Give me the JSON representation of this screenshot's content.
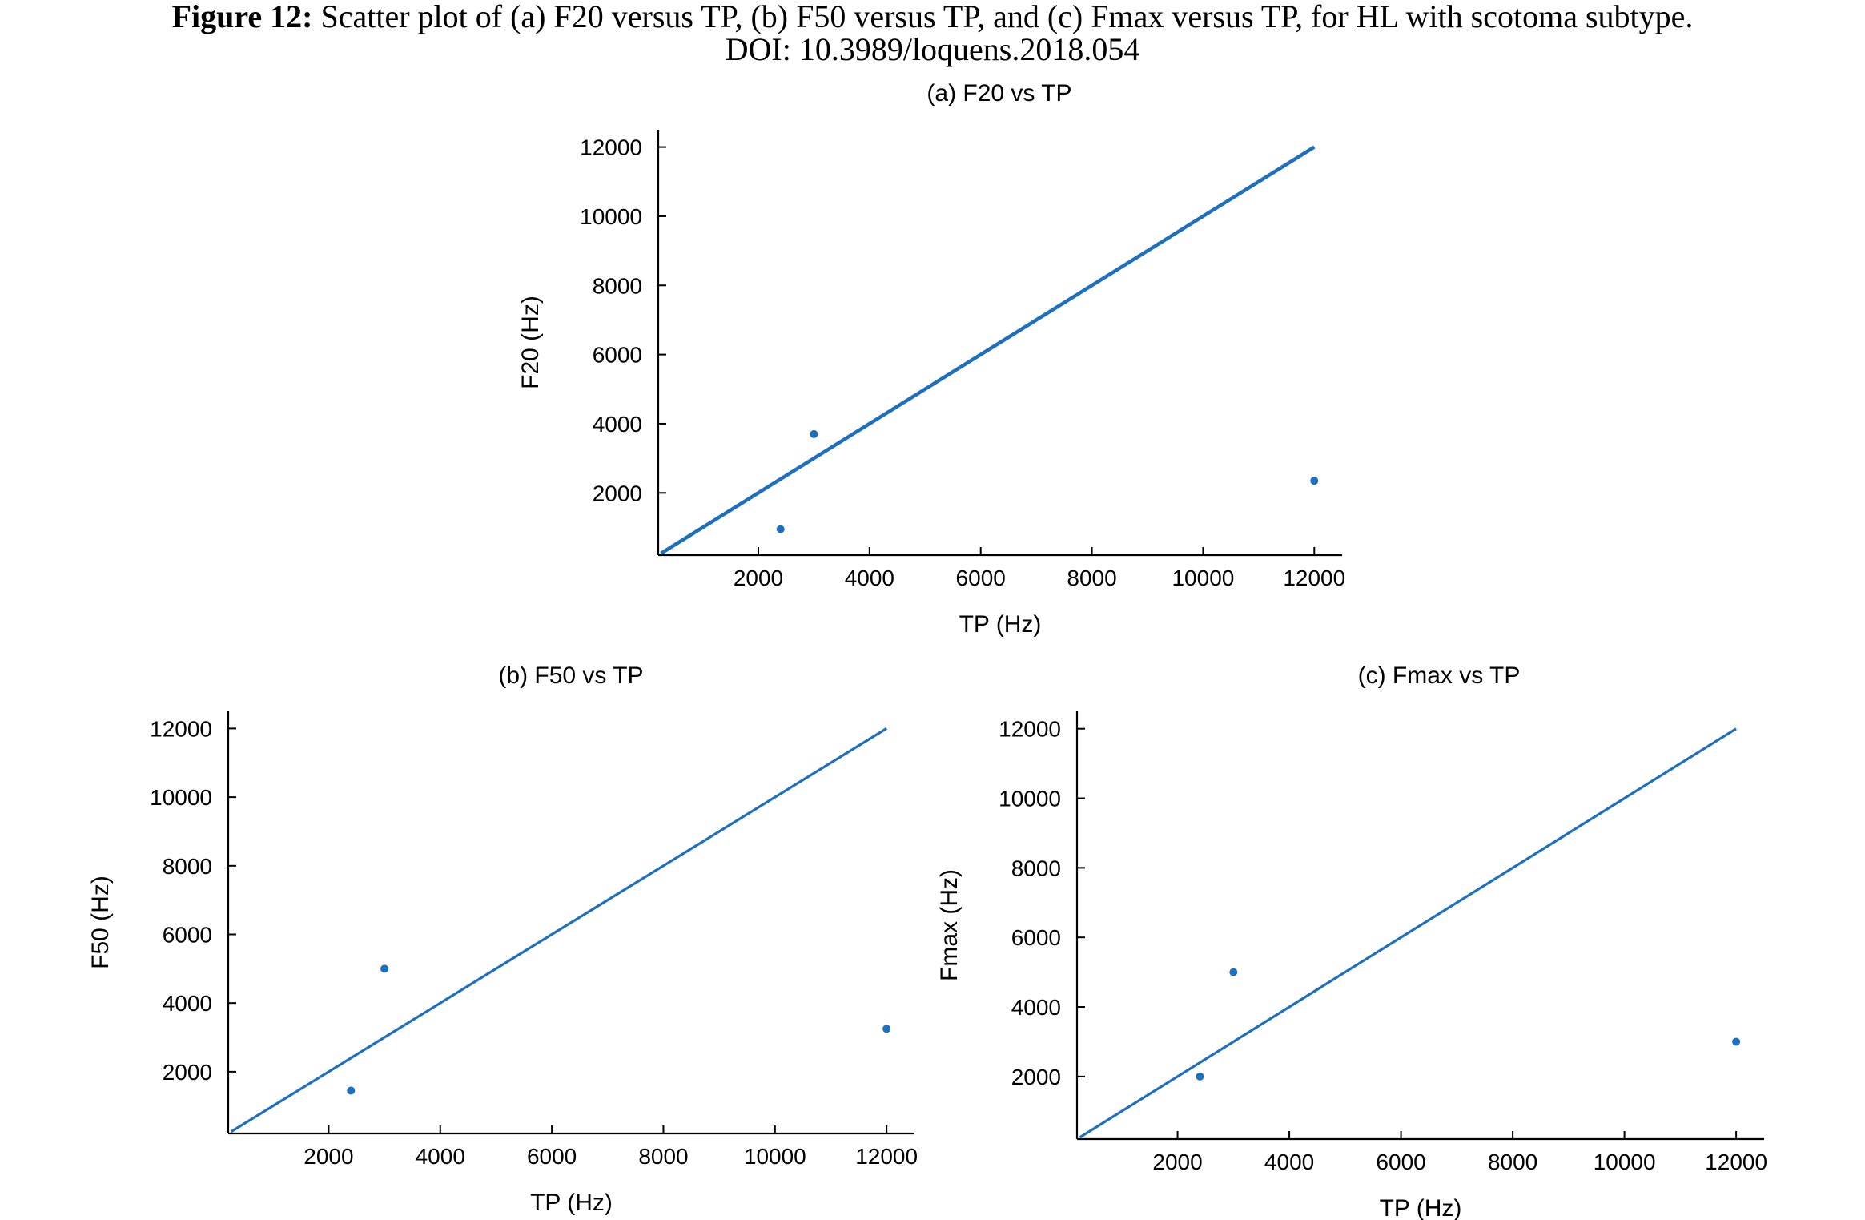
{
  "caption": {
    "lead": "Figure 12:",
    "text": " Scatter plot of (a) F20 versus TP, (b) F50 versus TP, and (c) Fmax versus TP, for HL with scotoma subtype.",
    "doi": "DOI: 10.3989/loquens.2018.054"
  },
  "colors": {
    "series": "#1f6fbf",
    "axis": "#000000"
  },
  "chart_data": [
    {
      "id": "a",
      "type": "scatter",
      "title": "(a) F20 vs TP",
      "xlabel": "TP (Hz)",
      "ylabel": "F20 (Hz)",
      "xlim": [
        200,
        12500
      ],
      "ylim": [
        200,
        12500
      ],
      "xticks": [
        2000,
        4000,
        6000,
        8000,
        10000,
        12000
      ],
      "yticks": [
        2000,
        4000,
        6000,
        8000,
        10000,
        12000
      ],
      "grid": false,
      "points": [
        {
          "x": 2400,
          "y": 950
        },
        {
          "x": 3000,
          "y": 3700
        },
        {
          "x": 12000,
          "y": 2350
        }
      ],
      "reference_line": {
        "x": [
          250,
          12000
        ],
        "y": [
          250,
          12000
        ]
      }
    },
    {
      "id": "b",
      "type": "scatter",
      "title": "(b) F50 vs TP",
      "xlabel": "TP (Hz)",
      "ylabel": "F50 (Hz)",
      "xlim": [
        200,
        12500
      ],
      "ylim": [
        200,
        12500
      ],
      "xticks": [
        2000,
        4000,
        6000,
        8000,
        10000,
        12000
      ],
      "yticks": [
        2000,
        4000,
        6000,
        8000,
        10000,
        12000
      ],
      "grid": false,
      "points": [
        {
          "x": 2400,
          "y": 1450
        },
        {
          "x": 3000,
          "y": 5000
        },
        {
          "x": 12000,
          "y": 3250
        }
      ],
      "reference_line": {
        "x": [
          250,
          12000
        ],
        "y": [
          250,
          12000
        ]
      }
    },
    {
      "id": "c",
      "type": "scatter",
      "title": "(c) Fmax vs TP",
      "xlabel": "TP (Hz)",
      "ylabel": "Fmax (Hz)",
      "xlim": [
        200,
        12500
      ],
      "ylim": [
        200,
        12500
      ],
      "xticks": [
        2000,
        4000,
        6000,
        8000,
        10000,
        12000
      ],
      "yticks": [
        2000,
        4000,
        6000,
        8000,
        10000,
        12000
      ],
      "grid": false,
      "points": [
        {
          "x": 2400,
          "y": 2000
        },
        {
          "x": 3000,
          "y": 5000
        },
        {
          "x": 12000,
          "y": 3000
        }
      ],
      "reference_line": {
        "x": [
          250,
          12000
        ],
        "y": [
          250,
          12000
        ]
      }
    }
  ]
}
